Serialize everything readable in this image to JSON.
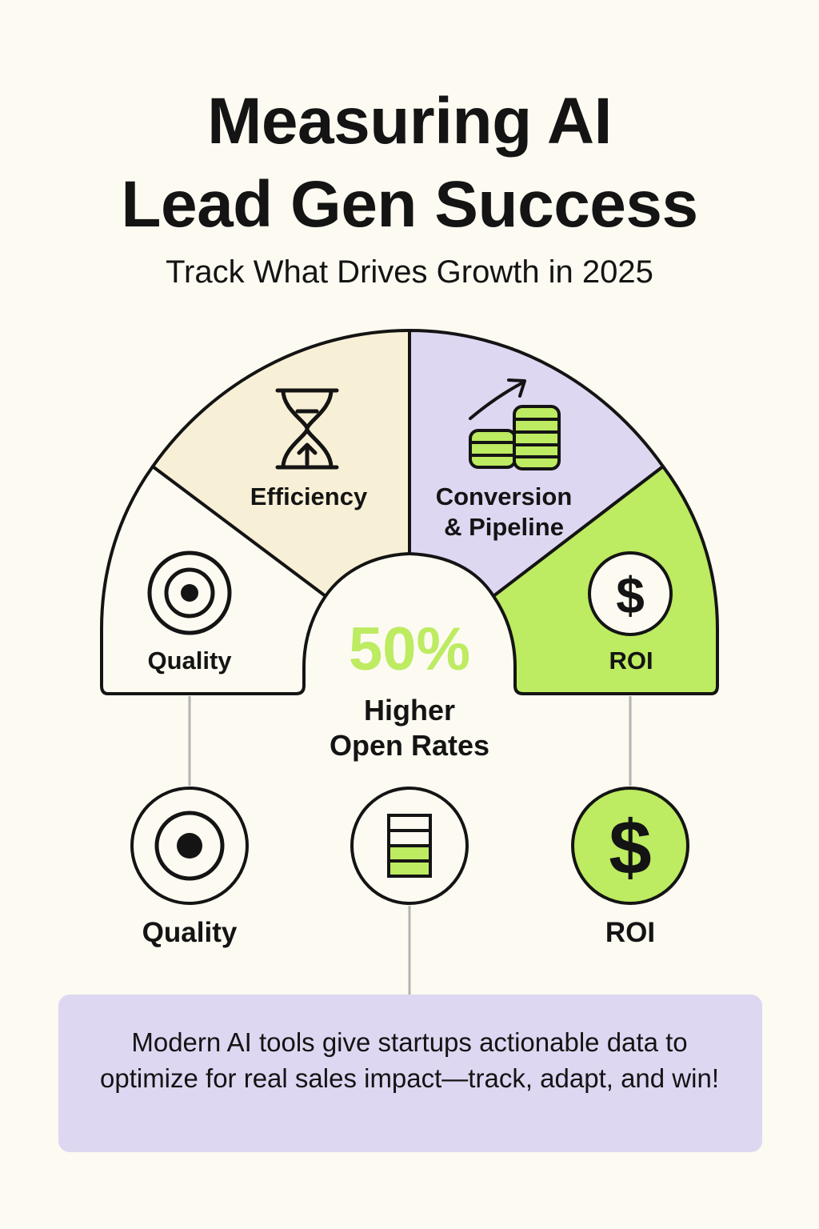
{
  "title": {
    "line1": "Measuring AI",
    "line2": "Lead Gen Success"
  },
  "subtitle": "Track What Drives Growth in 2025",
  "gauge": {
    "segments": [
      {
        "label": "Quality",
        "icon": "target-icon",
        "color": "#FCFAF1"
      },
      {
        "label": "Efficiency",
        "icon": "hourglass-icon",
        "color": "#F8F0D6"
      },
      {
        "label_line1": "Conversion",
        "label_line2": "& Pipeline",
        "icon": "coins-growth-icon",
        "color": "#DED7F2"
      },
      {
        "label": "ROI",
        "icon": "dollar-icon",
        "color": "#BDEB61"
      }
    ]
  },
  "stat": {
    "value": "50%",
    "label_line1": "Higher",
    "label_line2": "Open Rates",
    "accent": "#BDEB61"
  },
  "bottom_items": [
    {
      "label": "Quality",
      "icon": "target-icon"
    },
    {
      "label": "",
      "icon": "stacked-bars-icon"
    },
    {
      "label": "ROI",
      "icon": "dollar-icon"
    }
  ],
  "note": "Modern AI tools give startups actionable data to optimize for real sales impact—track, adapt, and win!",
  "colors": {
    "background": "#FCFAF1",
    "green": "#BDEB61",
    "lavender": "#DED7F2",
    "cream": "#F8F0D6",
    "ink": "#141414"
  }
}
